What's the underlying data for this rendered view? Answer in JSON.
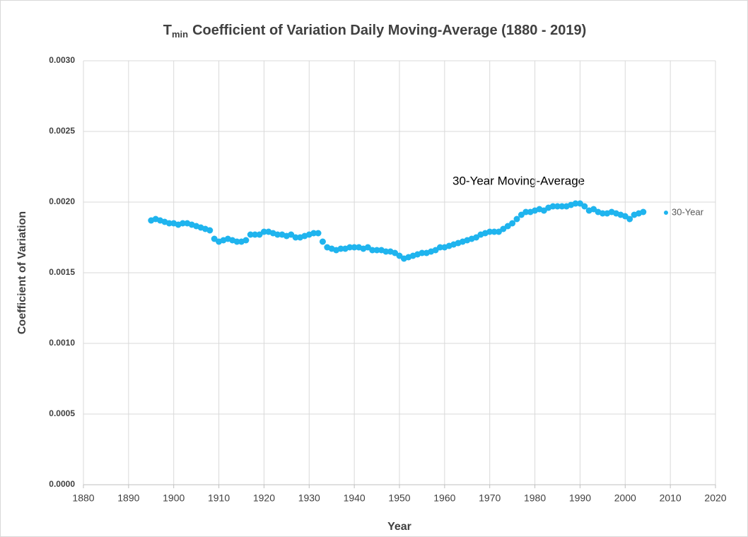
{
  "chart_data": {
    "type": "scatter",
    "title": {
      "symbol": "T",
      "subscript": "min",
      "text": "Coefficient of Variation Daily Moving-Average (1880 - 2019)"
    },
    "x_label": "Year",
    "y_label": "Coefficient of Variation",
    "annotation": "30-Year Moving-Average",
    "legend": "right",
    "grid": true,
    "xlim": [
      1880,
      2020
    ],
    "xticks": [
      1880,
      1890,
      1900,
      1910,
      1920,
      1930,
      1940,
      1950,
      1960,
      1970,
      1980,
      1990,
      2000,
      2010,
      2020
    ],
    "ylim": [
      0,
      0.003
    ],
    "yticks": [
      {
        "value": 0,
        "label": "0.0000"
      },
      {
        "value": 0.0005,
        "label": "0.0005"
      },
      {
        "value": 0.001,
        "label": "0.0010"
      },
      {
        "value": 0.0015,
        "label": "0.0015"
      },
      {
        "value": 0.002,
        "label": "0.0020"
      },
      {
        "value": 0.0025,
        "label": "0.0025"
      },
      {
        "value": 0.003,
        "label": "0.0030"
      }
    ],
    "x": [
      1895,
      1896,
      1897,
      1898,
      1899,
      1900,
      1901,
      1902,
      1903,
      1904,
      1905,
      1906,
      1907,
      1908,
      1909,
      1910,
      1911,
      1912,
      1913,
      1914,
      1915,
      1916,
      1917,
      1918,
      1919,
      1920,
      1921,
      1922,
      1923,
      1924,
      1925,
      1926,
      1927,
      1928,
      1929,
      1930,
      1931,
      1932,
      1933,
      1934,
      1935,
      1936,
      1937,
      1938,
      1939,
      1940,
      1941,
      1942,
      1943,
      1944,
      1945,
      1946,
      1947,
      1948,
      1949,
      1950,
      1951,
      1952,
      1953,
      1954,
      1955,
      1956,
      1957,
      1958,
      1959,
      1960,
      1961,
      1962,
      1963,
      1964,
      1965,
      1966,
      1967,
      1968,
      1969,
      1970,
      1971,
      1972,
      1973,
      1974,
      1975,
      1976,
      1977,
      1978,
      1979,
      1980,
      1981,
      1982,
      1983,
      1984,
      1985,
      1986,
      1987,
      1988,
      1989,
      1990,
      1991,
      1992,
      1993,
      1994,
      1995,
      1996,
      1997,
      1998,
      1999,
      2000,
      2001,
      2002,
      2003,
      2004
    ],
    "series": [
      {
        "name": "30-Year",
        "color": "#1fb4ee",
        "values": [
          0.00187,
          0.00188,
          0.00187,
          0.00186,
          0.00185,
          0.00185,
          0.00184,
          0.00185,
          0.00185,
          0.00184,
          0.00183,
          0.00182,
          0.00181,
          0.0018,
          0.00174,
          0.00172,
          0.00173,
          0.00174,
          0.00173,
          0.00172,
          0.00172,
          0.00173,
          0.00177,
          0.00177,
          0.00177,
          0.00179,
          0.00179,
          0.00178,
          0.00177,
          0.00177,
          0.00176,
          0.00177,
          0.00175,
          0.00175,
          0.00176,
          0.00177,
          0.00178,
          0.00178,
          0.00172,
          0.00168,
          0.00167,
          0.00166,
          0.00167,
          0.00167,
          0.00168,
          0.00168,
          0.00168,
          0.00167,
          0.00168,
          0.00166,
          0.00166,
          0.00166,
          0.00165,
          0.00165,
          0.00164,
          0.00162,
          0.0016,
          0.00161,
          0.00162,
          0.00163,
          0.00164,
          0.00164,
          0.00165,
          0.00166,
          0.00168,
          0.00168,
          0.00169,
          0.0017,
          0.00171,
          0.00172,
          0.00173,
          0.00174,
          0.00175,
          0.00177,
          0.00178,
          0.00179,
          0.00179,
          0.00179,
          0.00181,
          0.00183,
          0.00185,
          0.00188,
          0.00191,
          0.00193,
          0.00193,
          0.00194,
          0.00195,
          0.00194,
          0.00196,
          0.00197,
          0.00197,
          0.00197,
          0.00197,
          0.00198,
          0.00199,
          0.00199,
          0.00197,
          0.00194,
          0.00195,
          0.00193,
          0.00192,
          0.00192,
          0.00193,
          0.00192,
          0.00191,
          0.0019,
          0.00188,
          0.00191,
          0.00192,
          0.00193
        ]
      }
    ]
  }
}
